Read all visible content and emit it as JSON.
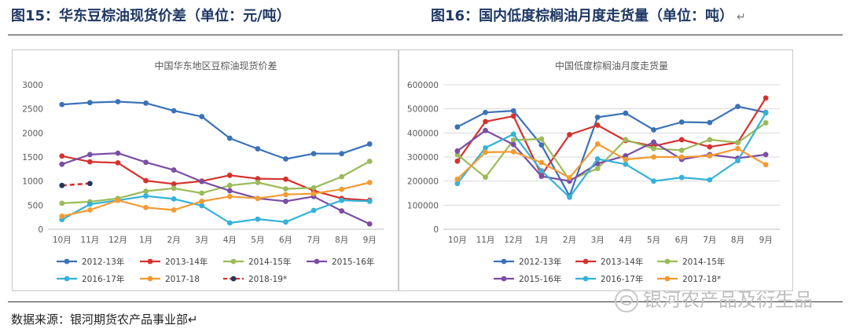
{
  "header": {
    "left_title": "图15：华东豆棕油现货价差（单位：元/吨）",
    "right_title": "图16：国内低度棕榈油月度走货量（单位：吨）",
    "return_mark": "↵"
  },
  "footer": {
    "source": "数据来源：银河期货农产品事业部↵",
    "watermark": "银河农产品及衍生品",
    "watermark_icon": "wechat-icon"
  },
  "chart_data": [
    {
      "type": "line",
      "title": "中国华东地区豆棕油现货价差",
      "xlabel": "",
      "ylabel": "",
      "categories": [
        "10月",
        "11月",
        "12月",
        "1月",
        "2月",
        "3月",
        "4月",
        "5月",
        "6月",
        "7月",
        "8月",
        "9月"
      ],
      "ylim": [
        0,
        3000
      ],
      "yticks": [
        0,
        500,
        1000,
        1500,
        2000,
        2500,
        3000
      ],
      "grid": false,
      "legend": "bottom",
      "series": [
        {
          "name": "2012-13年",
          "color": "#3a72b8",
          "style": "solid",
          "values": [
            2590,
            2630,
            2650,
            2620,
            2460,
            2340,
            1890,
            1670,
            1460,
            1570,
            1570,
            1770
          ]
        },
        {
          "name": "2013-14年",
          "color": "#d6322d",
          "style": "solid",
          "values": [
            1520,
            1400,
            1380,
            1010,
            940,
            1000,
            1120,
            1050,
            1040,
            800,
            640,
            600
          ]
        },
        {
          "name": "2014-15年",
          "color": "#9bbb59",
          "style": "solid",
          "values": [
            540,
            570,
            640,
            790,
            850,
            750,
            910,
            970,
            840,
            860,
            1090,
            1410
          ]
        },
        {
          "name": "2015-16年",
          "color": "#7b4ea3",
          "style": "solid",
          "values": [
            1350,
            1550,
            1580,
            1390,
            1230,
            990,
            800,
            640,
            580,
            680,
            380,
            110
          ]
        },
        {
          "name": "2016-17年",
          "color": "#35b2d8",
          "style": "solid",
          "values": [
            200,
            520,
            600,
            690,
            630,
            490,
            130,
            210,
            150,
            390,
            600,
            580
          ]
        },
        {
          "name": "2017-18",
          "color": "#f39b33",
          "style": "solid",
          "values": [
            270,
            400,
            600,
            450,
            400,
            580,
            680,
            640,
            720,
            740,
            830,
            970
          ]
        },
        {
          "name": "2018-19*",
          "color": "#d6322d",
          "marker_color": "#1f3864",
          "style": "dashed",
          "values": [
            910,
            950,
            null,
            null,
            null,
            null,
            null,
            null,
            null,
            null,
            null,
            null
          ]
        }
      ]
    },
    {
      "type": "line",
      "title": "中国低度棕榈油月度走货量",
      "xlabel": "",
      "ylabel": "",
      "categories": [
        "10月",
        "11月",
        "12月",
        "1月",
        "2月",
        "3月",
        "4月",
        "5月",
        "6月",
        "7月",
        "8月",
        "9月"
      ],
      "ylim": [
        0,
        600000
      ],
      "yticks": [
        0,
        100000,
        200000,
        300000,
        400000,
        500000,
        600000
      ],
      "grid": true,
      "legend": "bottom",
      "series": [
        {
          "name": "2012-13年",
          "color": "#3a72b8",
          "style": "solid",
          "values": [
            425000,
            485000,
            492000,
            350000,
            138000,
            465000,
            482000,
            413000,
            445000,
            443000,
            510000,
            485000
          ]
        },
        {
          "name": "2013-14年",
          "color": "#d6322d",
          "style": "solid",
          "values": [
            283000,
            447000,
            470000,
            225000,
            393000,
            432000,
            368000,
            345000,
            372000,
            342000,
            360000,
            545000
          ]
        },
        {
          "name": "2014-15年",
          "color": "#9bbb59",
          "style": "solid",
          "values": [
            310000,
            216000,
            370000,
            375000,
            204000,
            252000,
            372000,
            335000,
            328000,
            372000,
            360000,
            442000
          ]
        },
        {
          "name": "2015-16年",
          "color": "#7b4ea3",
          "style": "solid",
          "values": [
            325000,
            410000,
            352000,
            220000,
            200000,
            273000,
            305000,
            362000,
            290000,
            310000,
            295000,
            310000
          ]
        },
        {
          "name": "2016-17年",
          "color": "#35b2d8",
          "style": "solid",
          "values": [
            190000,
            338000,
            395000,
            243000,
            133000,
            292000,
            270000,
            200000,
            215000,
            205000,
            285000,
            483000
          ]
        },
        {
          "name": "2017-18*",
          "color": "#f39b33",
          "style": "solid",
          "values": [
            208000,
            320000,
            322000,
            277000,
            214000,
            354000,
            290000,
            300000,
            300000,
            305000,
            335000,
            268000
          ]
        }
      ]
    }
  ]
}
